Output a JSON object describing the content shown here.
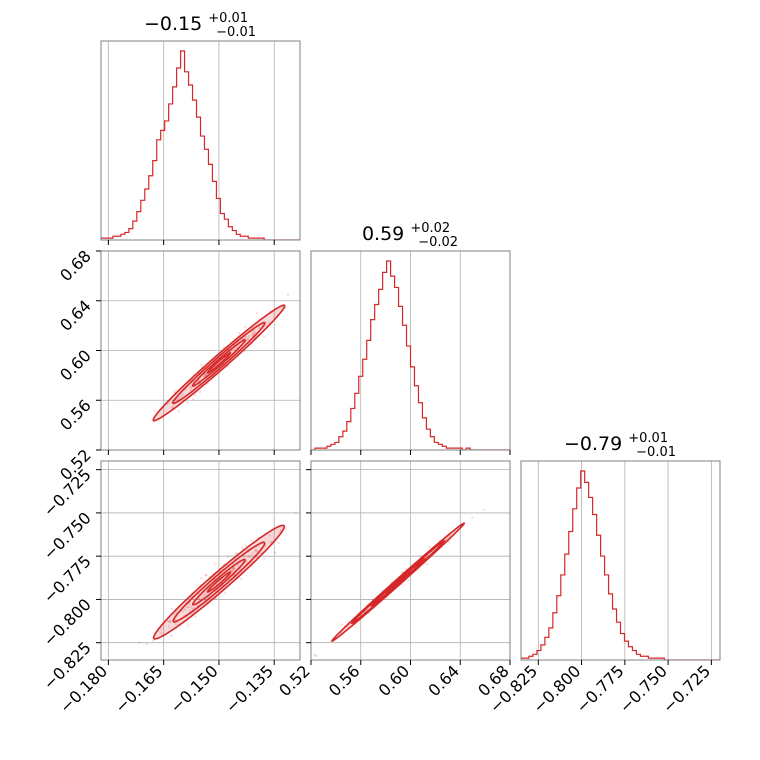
{
  "accent_color": "#d62728",
  "chart_data": {
    "type": "corner",
    "params": [
      {
        "name": "",
        "median": -0.15,
        "title": {
          "main": "−0.15",
          "sup": "+0.01",
          "sub": "−0.01"
        },
        "range": [
          -0.182,
          -0.128
        ],
        "ticks": [
          -0.18,
          -0.165,
          -0.15,
          -0.135
        ],
        "tick_labels": [
          "−0.180",
          "−0.165",
          "−0.150",
          "−0.135"
        ],
        "hist": [
          1,
          1,
          1,
          2,
          2,
          3,
          4,
          6,
          10,
          15,
          21,
          27,
          34,
          42,
          53,
          58,
          63,
          72,
          81,
          91,
          100,
          89,
          82,
          74,
          65,
          55,
          48,
          40,
          31,
          22,
          14,
          11,
          7,
          5,
          3,
          2,
          2,
          1,
          1,
          1,
          1,
          0,
          0,
          0,
          0,
          0,
          0,
          0,
          0,
          0
        ]
      },
      {
        "name": "",
        "median": 0.59,
        "title": {
          "main": "0.59",
          "sup": "+0.02",
          "sub": "−0.02"
        },
        "range": [
          0.52,
          0.68
        ],
        "ticks": [
          0.52,
          0.56,
          0.6,
          0.64,
          0.68
        ],
        "tick_labels": [
          "0.52",
          "0.56",
          "0.60",
          "0.64",
          "0.68"
        ],
        "hist": [
          0,
          1,
          1,
          1,
          2,
          3,
          4,
          7,
          10,
          15,
          22,
          30,
          39,
          48,
          58,
          69,
          77,
          85,
          94,
          100,
          92,
          86,
          76,
          66,
          55,
          44,
          34,
          25,
          17,
          11,
          7,
          4,
          3,
          2,
          1,
          1,
          1,
          1,
          0,
          1,
          0,
          0,
          0,
          0,
          0,
          0,
          0,
          0,
          0,
          0
        ]
      },
      {
        "name": "",
        "median": -0.79,
        "title": {
          "main": "−0.79",
          "sup": "+0.01",
          "sub": "−0.01"
        },
        "range": [
          -0.835,
          -0.72
        ],
        "ticks": [
          -0.825,
          -0.8,
          -0.775,
          -0.75,
          -0.725
        ],
        "tick_labels": [
          "−0.825",
          "−0.800",
          "−0.775",
          "−0.750",
          "−0.725"
        ],
        "hist": [
          1,
          1,
          2,
          3,
          5,
          8,
          12,
          17,
          25,
          34,
          45,
          56,
          68,
          80,
          91,
          100,
          94,
          86,
          77,
          66,
          55,
          45,
          35,
          27,
          20,
          14,
          10,
          7,
          5,
          3,
          2,
          2,
          1,
          1,
          1,
          1,
          0,
          0,
          0,
          0,
          0,
          0,
          0,
          0,
          0,
          0,
          0,
          0,
          0,
          0
        ]
      }
    ],
    "grid": true,
    "correlations": [
      {
        "x": 0,
        "y": 1,
        "rho": 0.97
      },
      {
        "x": 0,
        "y": 2,
        "rho": 0.95
      },
      {
        "x": 1,
        "y": 2,
        "rho": 0.995
      }
    ]
  }
}
